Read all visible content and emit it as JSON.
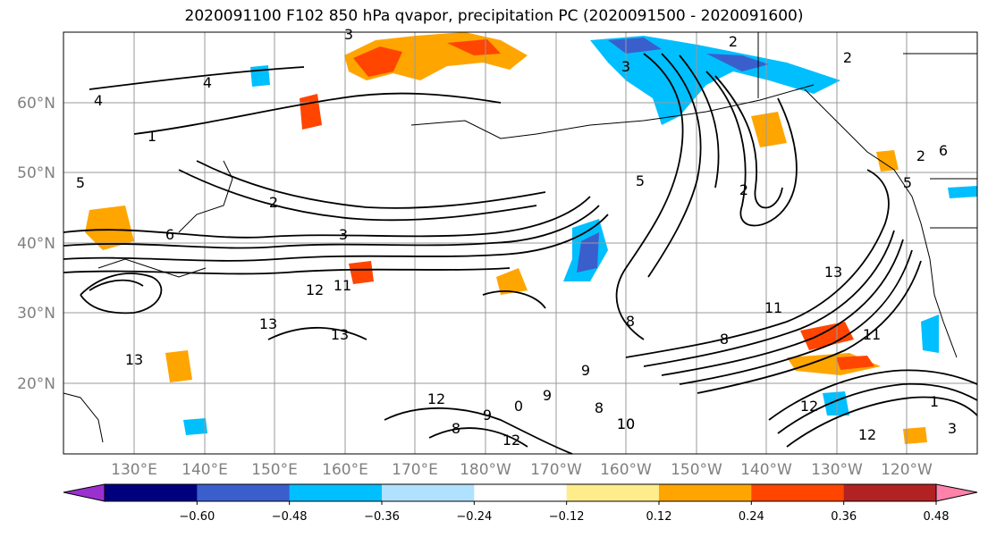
{
  "title": "2020091100 F102 850 hPa qvapor, precipitation PC (2020091500 - 2020091600)",
  "map": {
    "lat_labels": [
      "60°N",
      "50°N",
      "40°N",
      "30°N",
      "20°N"
    ],
    "lon_labels": [
      "130°E",
      "140°E",
      "150°E",
      "160°E",
      "170°E",
      "180°W",
      "170°W",
      "160°W",
      "150°W",
      "140°W",
      "130°W",
      "120°W"
    ],
    "contour_labels": [
      "2",
      "4",
      "4",
      "5",
      "5",
      "2",
      "3",
      "2",
      "6",
      "13",
      "12",
      "11",
      "13",
      "13",
      "1",
      "9",
      "8",
      "9",
      "8",
      "10",
      "12",
      "12",
      "8",
      "9",
      "0",
      "8",
      "10",
      "11",
      "11",
      "12",
      "13",
      "1",
      "3",
      "12",
      "2",
      "6",
      "5",
      "3",
      "2",
      "3"
    ]
  },
  "colorbar": {
    "ticks": [
      "−0.60",
      "−0.48",
      "−0.36",
      "−0.24",
      "−0.12",
      "0.12",
      "0.24",
      "0.36",
      "0.48",
      "0.60"
    ],
    "colors": [
      "#9b30d0",
      "#00007f",
      "#3a5fcd",
      "#00bfff",
      "#b0e2ff",
      "#ffffff",
      "#ffec8b",
      "#ffa500",
      "#ff4500",
      "#b22222",
      "#ff82ab"
    ]
  }
}
